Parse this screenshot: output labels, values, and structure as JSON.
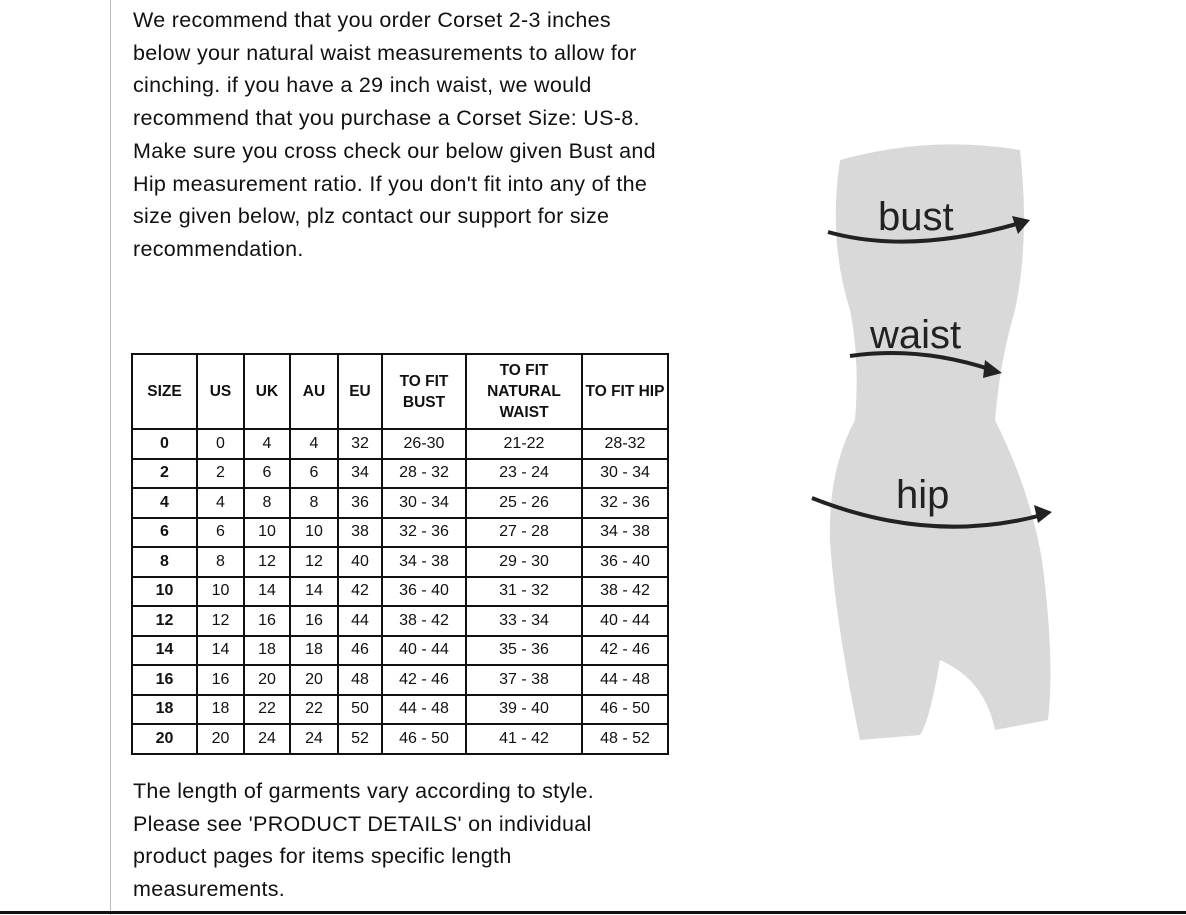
{
  "intro_text": "We recommend that you order Corset 2-3 inches below your natural waist measurements to allow for cinching. if you have a 29 inch waist, we would recommend that you purchase a Corset Size: US-8. Make sure you cross check our below given Bust and Hip measurement ratio. If you don't fit into any of the size given below, plz contact our support for size recommendation.",
  "table": {
    "headers": [
      "SIZE",
      "US",
      "UK",
      "AU",
      "EU",
      "TO FIT BUST",
      "TO FIT NATURAL WAIST",
      "TO FIT HIP"
    ],
    "rows": [
      [
        "0",
        "0",
        "4",
        "4",
        "32",
        "26-30",
        "21-22",
        "28-32"
      ],
      [
        "2",
        "2",
        "6",
        "6",
        "34",
        "28 - 32",
        "23 - 24",
        "30 - 34"
      ],
      [
        "4",
        "4",
        "8",
        "8",
        "36",
        "30 - 34",
        "25 - 26",
        "32 - 36"
      ],
      [
        "6",
        "6",
        "10",
        "10",
        "38",
        "32 - 36",
        "27 - 28",
        "34 - 38"
      ],
      [
        "8",
        "8",
        "12",
        "12",
        "40",
        "34 - 38",
        "29 - 30",
        "36 - 40"
      ],
      [
        "10",
        "10",
        "14",
        "14",
        "42",
        "36 - 40",
        "31 - 32",
        "38 - 42"
      ],
      [
        "12",
        "12",
        "16",
        "16",
        "44",
        "38 - 42",
        "33 - 34",
        "40 - 44"
      ],
      [
        "14",
        "14",
        "18",
        "18",
        "46",
        "40 - 44",
        "35 - 36",
        "42 - 46"
      ],
      [
        "16",
        "16",
        "20",
        "20",
        "48",
        "42 - 46",
        "37 - 38",
        "44 - 48"
      ],
      [
        "18",
        "18",
        "22",
        "22",
        "50",
        "44 - 48",
        "39 - 40",
        "46 - 50"
      ],
      [
        "20",
        "20",
        "24",
        "24",
        "52",
        "46 - 50",
        "41 - 42",
        "48 - 52"
      ]
    ]
  },
  "outro_text": "The length of garments vary according to style. Please see 'PRODUCT DETAILS'  on individual product pages for items specific length measurements.",
  "figure": {
    "labels": {
      "bust": "bust",
      "waist": "waist",
      "hip": "hip"
    },
    "body_color": "#d9d9d9"
  }
}
